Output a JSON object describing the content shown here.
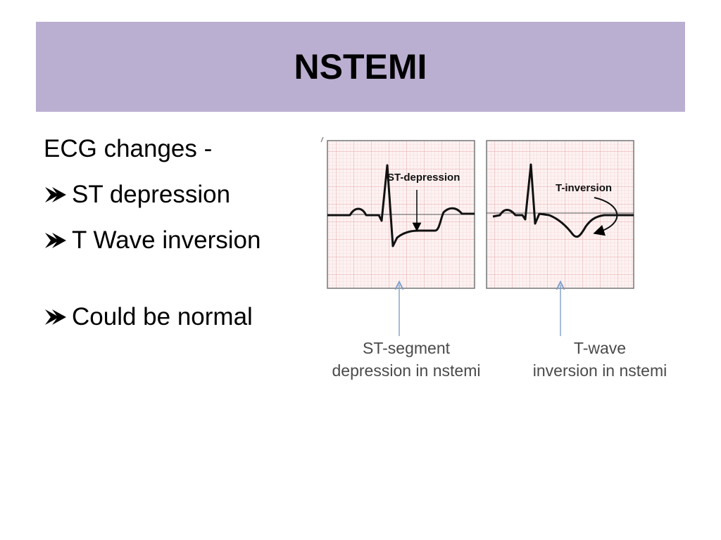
{
  "slide": {
    "title": "NSTEMI",
    "colors": {
      "title_bar": "#bbafd1",
      "ecg_grid": "#e8a6a6",
      "caption": "#4a4a4a",
      "pointer_arrow": "#7f9fc9"
    }
  },
  "content": {
    "heading": "ECG changes -",
    "bullets": [
      {
        "icon": "arrow-bullet-icon",
        "text": "ST depression"
      },
      {
        "icon": "arrow-bullet-icon",
        "text": "T Wave inversion"
      },
      {
        "icon": "arrow-bullet-icon",
        "text": "Could be normal"
      }
    ]
  },
  "figure": {
    "panels": [
      {
        "label": "ST-depression",
        "caption_line1": "ST-segment",
        "caption_line2": "depression in nstemi"
      },
      {
        "label": "T-inversion",
        "caption_line1": "T-wave",
        "caption_line2": "inversion in nstemi"
      }
    ]
  }
}
